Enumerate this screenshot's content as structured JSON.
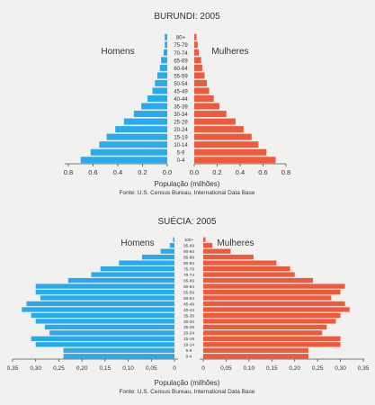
{
  "chart_data": [
    {
      "type": "bar",
      "subtype": "population-pyramid",
      "title": "BURUNDI: 2005",
      "xlabel": "População (milhões)",
      "source": "Fonte: U.S. Census Bureau, International Data Base",
      "categories": [
        "0-4",
        "5-9",
        "10-14",
        "15-19",
        "20-24",
        "25-29",
        "30-34",
        "35-39",
        "40-44",
        "45-49",
        "50-54",
        "55-59",
        "60-64",
        "65-69",
        "70-74",
        "75-79",
        "80+"
      ],
      "series": [
        {
          "name": "Homens",
          "color": "#2aa9ec",
          "values": [
            0.7,
            0.62,
            0.55,
            0.49,
            0.42,
            0.35,
            0.27,
            0.21,
            0.16,
            0.12,
            0.1,
            0.08,
            0.06,
            0.05,
            0.03,
            0.02,
            0.02
          ]
        },
        {
          "name": "Mulheres",
          "color": "#ee5a3c",
          "values": [
            0.71,
            0.63,
            0.56,
            0.5,
            0.43,
            0.36,
            0.28,
            0.22,
            0.17,
            0.13,
            0.11,
            0.09,
            0.07,
            0.06,
            0.04,
            0.03,
            0.02
          ]
        }
      ],
      "xlim": [
        0,
        0.8
      ],
      "ticks": [
        "0.8",
        "0.6",
        "0.4",
        "0.2",
        "0.0",
        "0.0",
        "0.2",
        "0.4",
        "0.6",
        "0.8"
      ]
    },
    {
      "type": "bar",
      "subtype": "population-pyramid",
      "title": "SUÉCIA: 2005",
      "xlabel": "População (milhões)",
      "source": "Fonte: U.S. Census Bureau, International Data Base",
      "categories": [
        "0-4",
        "5-9",
        "10-14",
        "15-19",
        "20-24",
        "25-29",
        "30-34",
        "35-39",
        "40-44",
        "45-49",
        "50-54",
        "55-59",
        "60-64",
        "65-69",
        "70-74",
        "75-79",
        "80-84",
        "85-89",
        "90-94",
        "95-99",
        "100+"
      ],
      "series": [
        {
          "name": "Homens",
          "color": "#2aa9ec",
          "values": [
            0.24,
            0.24,
            0.3,
            0.31,
            0.27,
            0.28,
            0.3,
            0.31,
            0.33,
            0.32,
            0.29,
            0.3,
            0.3,
            0.23,
            0.18,
            0.16,
            0.12,
            0.07,
            0.03,
            0.01,
            0.003
          ]
        },
        {
          "name": "Mulheres",
          "color": "#ee5a3c",
          "values": [
            0.23,
            0.23,
            0.3,
            0.3,
            0.26,
            0.27,
            0.29,
            0.3,
            0.32,
            0.31,
            0.28,
            0.3,
            0.31,
            0.24,
            0.2,
            0.19,
            0.16,
            0.11,
            0.06,
            0.02,
            0.005
          ]
        }
      ],
      "xlim": [
        0,
        0.35
      ],
      "ticks": [
        "0,35",
        "0,30",
        "0,25",
        "0,20",
        "0,15",
        "0,10",
        "0,05",
        "0",
        "0",
        "0,05",
        "0,10",
        "0,15",
        "0,20",
        "0,25",
        "0,30",
        "0,35"
      ]
    }
  ]
}
